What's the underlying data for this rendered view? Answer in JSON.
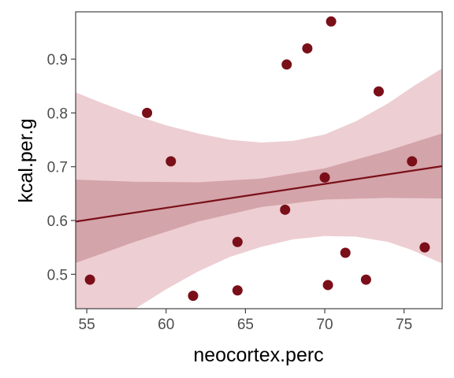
{
  "chart_data": {
    "type": "scatter",
    "xlabel": "neocortex.perc",
    "ylabel": "kcal.per.g",
    "xlim": [
      54.3,
      77.4
    ],
    "ylim": [
      0.436,
      0.988
    ],
    "x_ticks": [
      55,
      60,
      65,
      70,
      75
    ],
    "y_ticks": [
      0.5,
      0.6,
      0.7,
      0.8,
      0.9
    ],
    "x_tick_labels": [
      "55",
      "60",
      "65",
      "70",
      "75"
    ],
    "y_tick_labels": [
      "0.5",
      "0.6",
      "0.7",
      "0.8",
      "0.9"
    ],
    "grid": false,
    "points": [
      {
        "x": 55.2,
        "y": 0.49
      },
      {
        "x": 58.8,
        "y": 0.8
      },
      {
        "x": 60.3,
        "y": 0.71
      },
      {
        "x": 61.7,
        "y": 0.46
      },
      {
        "x": 64.5,
        "y": 0.56
      },
      {
        "x": 64.5,
        "y": 0.47
      },
      {
        "x": 67.5,
        "y": 0.62
      },
      {
        "x": 67.6,
        "y": 0.89
      },
      {
        "x": 68.9,
        "y": 0.92
      },
      {
        "x": 70.0,
        "y": 0.68
      },
      {
        "x": 70.2,
        "y": 0.48
      },
      {
        "x": 70.4,
        "y": 0.97
      },
      {
        "x": 71.3,
        "y": 0.54
      },
      {
        "x": 72.6,
        "y": 0.49
      },
      {
        "x": 73.4,
        "y": 0.84
      },
      {
        "x": 75.5,
        "y": 0.71
      },
      {
        "x": 76.3,
        "y": 0.55
      }
    ],
    "regression_line": [
      {
        "x": 54.3,
        "y": 0.598
      },
      {
        "x": 77.4,
        "y": 0.701
      }
    ],
    "outer_band": [
      {
        "x": 54.3,
        "lower": 0.36,
        "upper": 0.838
      },
      {
        "x": 56,
        "lower": 0.395,
        "upper": 0.818
      },
      {
        "x": 58,
        "lower": 0.435,
        "upper": 0.796
      },
      {
        "x": 60,
        "lower": 0.472,
        "upper": 0.777
      },
      {
        "x": 62,
        "lower": 0.505,
        "upper": 0.762
      },
      {
        "x": 64,
        "lower": 0.532,
        "upper": 0.75
      },
      {
        "x": 66,
        "lower": 0.551,
        "upper": 0.745
      },
      {
        "x": 68,
        "lower": 0.565,
        "upper": 0.748
      },
      {
        "x": 70,
        "lower": 0.571,
        "upper": 0.76
      },
      {
        "x": 72,
        "lower": 0.57,
        "upper": 0.785
      },
      {
        "x": 74,
        "lower": 0.56,
        "upper": 0.818
      },
      {
        "x": 75.5,
        "lower": 0.545,
        "upper": 0.848
      },
      {
        "x": 77.4,
        "lower": 0.52,
        "upper": 0.883
      }
    ],
    "inner_band": [
      {
        "x": 54.3,
        "lower": 0.521,
        "upper": 0.676
      },
      {
        "x": 58,
        "lower": 0.56,
        "upper": 0.672
      },
      {
        "x": 62,
        "lower": 0.598,
        "upper": 0.671
      },
      {
        "x": 66,
        "lower": 0.625,
        "upper": 0.678
      },
      {
        "x": 70,
        "lower": 0.639,
        "upper": 0.697
      },
      {
        "x": 74,
        "lower": 0.642,
        "upper": 0.73
      },
      {
        "x": 77.4,
        "lower": 0.641,
        "upper": 0.762
      }
    ],
    "colors": {
      "points": "#7a0f19",
      "line": "#7a0f19",
      "outer_band": "#edced2",
      "inner_band": "#d3a4a9",
      "panel_border": "#333333"
    }
  }
}
